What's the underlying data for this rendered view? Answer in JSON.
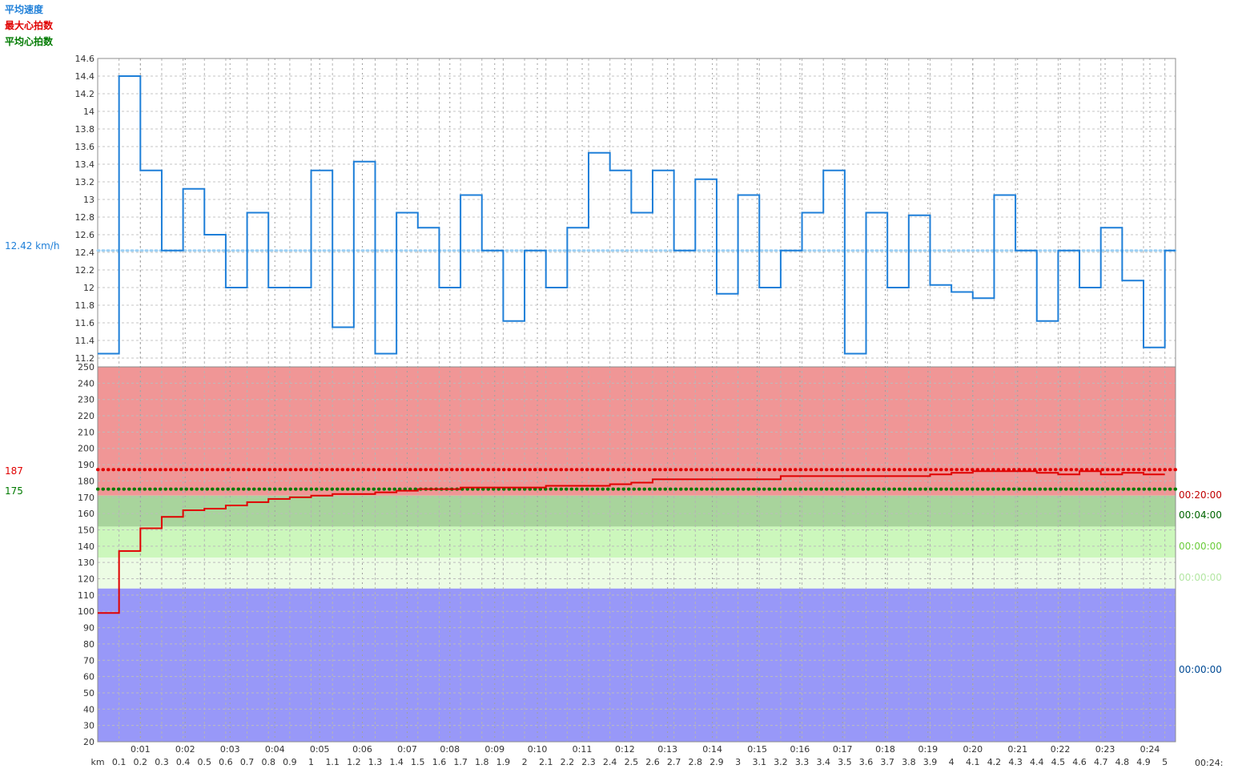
{
  "legend": {
    "avg_speed": "平均速度",
    "max_hr": "最大心拍数",
    "avg_hr": "平均心拍数"
  },
  "reference_labels": {
    "avg_speed": "12.42 km/h",
    "max_hr": "187",
    "avg_hr": "175"
  },
  "zone_times": [
    "00:20:00",
    "00:04:00",
    "00:00:00",
    "00:00:00",
    "00:00:00"
  ],
  "end_time_label": "00:24:",
  "km_unit_label": "km",
  "colors": {
    "speed": "#1e7fd8",
    "speed_avg": "#9cd0f4",
    "max_hr": "#e00000",
    "avg_hr": "#007a00",
    "zone_red": "#f09696",
    "zone_dark_green": "#a8d49c",
    "zone_light_green": "#ccf7bc",
    "zone_pale_green": "#ecfce4",
    "zone_blue": "#9898f8",
    "zone_time_colors": [
      "#c00000",
      "#006400",
      "#6ccc3c",
      "#b4e6a4",
      "#004a94"
    ]
  },
  "chart_data": [
    {
      "type": "line",
      "step": true,
      "series": [
        {
          "name": "平均速度",
          "x": [
            0,
            0.1,
            0.2,
            0.3,
            0.4,
            0.5,
            0.6,
            0.7,
            0.8,
            0.9,
            1.0,
            1.1,
            1.2,
            1.3,
            1.4,
            1.5,
            1.6,
            1.7,
            1.8,
            1.9,
            2.0,
            2.1,
            2.2,
            2.3,
            2.4,
            2.5,
            2.6,
            2.7,
            2.8,
            2.9,
            3.0,
            3.1,
            3.2,
            3.3,
            3.4,
            3.5,
            3.6,
            3.7,
            3.8,
            3.9,
            4.0,
            4.1,
            4.2,
            4.3,
            4.4,
            4.5,
            4.6,
            4.7,
            4.8,
            4.9,
            5.0
          ],
          "values": [
            11.25,
            14.4,
            13.33,
            12.42,
            13.12,
            12.6,
            12.0,
            12.85,
            12.0,
            12.0,
            13.33,
            11.55,
            13.43,
            11.25,
            12.85,
            12.68,
            12.0,
            13.05,
            12.42,
            11.62,
            12.42,
            12.0,
            12.68,
            13.53,
            13.33,
            12.85,
            13.33,
            12.42,
            13.23,
            11.93,
            13.05,
            12.0,
            12.42,
            12.85,
            13.33,
            11.25,
            12.85,
            12.0,
            12.82,
            12.03,
            11.95,
            11.88,
            13.05,
            12.42,
            11.62,
            12.42,
            12.0,
            12.68,
            12.08,
            11.32,
            12.42
          ]
        }
      ],
      "reference_lines": [
        {
          "name": "平均速度",
          "value": 12.42
        }
      ],
      "ylim": [
        11.1,
        14.6
      ],
      "yticks": [
        11.2,
        11.4,
        11.6,
        11.8,
        12,
        12.2,
        12.4,
        12.6,
        12.8,
        13,
        13.2,
        13.4,
        13.6,
        13.8,
        14,
        14.2,
        14.4,
        14.6
      ],
      "ytick_labels": [
        "11.2",
        "11.4",
        "11.6",
        "11.8",
        "12",
        "12.2",
        "12.4",
        "12.6",
        "12.8",
        "13",
        "13.2",
        "13.4",
        "13.6",
        "13.8",
        "14",
        "14.2",
        "14.4",
        "14.6"
      ],
      "grid": true
    },
    {
      "type": "line",
      "step": true,
      "series": [
        {
          "name": "心拍数",
          "x": [
            0,
            0.1,
            0.2,
            0.3,
            0.4,
            0.5,
            0.6,
            0.7,
            0.8,
            0.9,
            1.0,
            1.1,
            1.2,
            1.3,
            1.4,
            1.5,
            1.6,
            1.7,
            1.8,
            1.9,
            2.0,
            2.1,
            2.2,
            2.3,
            2.4,
            2.5,
            2.6,
            2.7,
            2.8,
            2.9,
            3.0,
            3.1,
            3.2,
            3.3,
            3.4,
            3.5,
            3.6,
            3.7,
            3.8,
            3.9,
            4.0,
            4.1,
            4.2,
            4.3,
            4.4,
            4.5,
            4.6,
            4.7,
            4.8,
            4.9,
            5.0
          ],
          "values": [
            99,
            137,
            151,
            158,
            162,
            163,
            165,
            167,
            169,
            170,
            171,
            172,
            172,
            173,
            174,
            175,
            175,
            176,
            176,
            176,
            176,
            177,
            177,
            177,
            178,
            179,
            181,
            181,
            181,
            181,
            181,
            181,
            183,
            183,
            183,
            183,
            183,
            183,
            183,
            184,
            185,
            186,
            186,
            186,
            185,
            184,
            186,
            184,
            185,
            184,
            184
          ]
        }
      ],
      "reference_lines": [
        {
          "name": "最大心拍数",
          "value": 187
        },
        {
          "name": "平均心拍数",
          "value": 175
        }
      ],
      "zones": [
        {
          "from": 171,
          "to": 250,
          "time": "00:20:00"
        },
        {
          "from": 152,
          "to": 171,
          "time": "00:04:00"
        },
        {
          "from": 133,
          "to": 152,
          "time": "00:00:00"
        },
        {
          "from": 114,
          "to": 133,
          "time": "00:00:00"
        },
        {
          "from": 20,
          "to": 114,
          "time": "00:00:00"
        }
      ],
      "ylim": [
        20,
        250
      ],
      "yticks": [
        20,
        30,
        40,
        50,
        60,
        70,
        80,
        90,
        100,
        110,
        120,
        130,
        140,
        150,
        160,
        170,
        180,
        190,
        200,
        210,
        220,
        230,
        240,
        250
      ],
      "ytick_labels": [
        "20",
        "30",
        "40",
        "50",
        "60",
        "70",
        "80",
        "90",
        "100",
        "110",
        "120",
        "130",
        "140",
        "150",
        "160",
        "170",
        "180",
        "190",
        "200",
        "210",
        "220",
        "230",
        "240",
        "250"
      ],
      "grid": true
    },
    {
      "type": "axis",
      "xlabel": "km",
      "xlim": [
        0,
        5.05
      ],
      "km_ticks": [
        0.1,
        0.2,
        0.3,
        0.4,
        0.5,
        0.6,
        0.7,
        0.8,
        0.9,
        1,
        1.1,
        1.2,
        1.3,
        1.4,
        1.5,
        1.6,
        1.7,
        1.8,
        1.9,
        2,
        2.1,
        2.2,
        2.3,
        2.4,
        2.5,
        2.6,
        2.7,
        2.8,
        2.9,
        3,
        3.1,
        3.2,
        3.3,
        3.4,
        3.5,
        3.6,
        3.7,
        3.8,
        3.9,
        4,
        4.1,
        4.2,
        4.3,
        4.4,
        4.5,
        4.6,
        4.7,
        4.8,
        4.9,
        5
      ],
      "km_tick_labels": [
        "0.1",
        "0.2",
        "0.3",
        "0.4",
        "0.5",
        "0.6",
        "0.7",
        "0.8",
        "0.9",
        "1",
        "1.1",
        "1.2",
        "1.3",
        "1.4",
        "1.5",
        "1.6",
        "1.7",
        "1.8",
        "1.9",
        "2",
        "2.1",
        "2.2",
        "2.3",
        "2.4",
        "2.5",
        "2.6",
        "2.7",
        "2.8",
        "2.9",
        "3",
        "3.1",
        "3.2",
        "3.3",
        "3.4",
        "3.5",
        "3.6",
        "3.7",
        "3.8",
        "3.9",
        "4",
        "4.1",
        "4.2",
        "4.3",
        "4.4",
        "4.5",
        "4.6",
        "4.7",
        "4.8",
        "4.9",
        "5"
      ],
      "time_ticks_km": [
        0.2,
        0.41,
        0.62,
        0.83,
        1.04,
        1.24,
        1.45,
        1.65,
        1.86,
        2.06,
        2.27,
        2.47,
        2.67,
        2.88,
        3.09,
        3.29,
        3.49,
        3.69,
        3.89,
        4.1,
        4.31,
        4.51,
        4.72,
        4.93
      ],
      "time_tick_labels": [
        "0:01",
        "0:02",
        "0:03",
        "0:04",
        "0:05",
        "0:06",
        "0:07",
        "0:08",
        "0:09",
        "0:10",
        "0:11",
        "0:12",
        "0:13",
        "0:14",
        "0:15",
        "0:16",
        "0:17",
        "0:18",
        "0:19",
        "0:20",
        "0:21",
        "0:22",
        "0:23",
        "0:24"
      ]
    }
  ]
}
